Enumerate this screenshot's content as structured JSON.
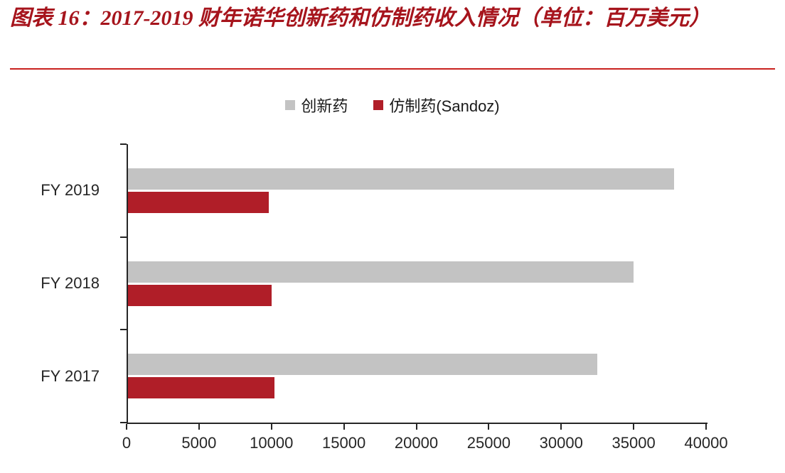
{
  "title": "图表 16：2017-2019 财年诺华创新药和仿制药收入情况（单位：百万美元）",
  "legend": [
    {
      "label": "创新药",
      "color": "#c3c3c3"
    },
    {
      "label": "仿制药(Sandoz)",
      "color": "#b01e28"
    }
  ],
  "colors": {
    "title_red": "#a6141c",
    "rule_red": "#c9211e",
    "bar_gray": "#c3c3c3",
    "bar_red": "#b01e28",
    "axis": "#262626"
  },
  "chart_data": {
    "type": "bar",
    "orientation": "horizontal",
    "title": "图表 16：2017-2019 财年诺华创新药和仿制药收入情况（单位：百万美元）",
    "categories": [
      "FY 2019",
      "FY 2018",
      "FY 2017"
    ],
    "series": [
      {
        "name": "创新药",
        "color": "#c3c3c3",
        "values": [
          37700,
          34900,
          32400
        ]
      },
      {
        "name": "仿制药(Sandoz)",
        "color": "#b01e28",
        "values": [
          9700,
          9900,
          10100
        ]
      }
    ],
    "xlabel": "",
    "ylabel": "",
    "xlim": [
      0,
      40000
    ],
    "xticks": [
      0,
      5000,
      10000,
      15000,
      20000,
      25000,
      30000,
      35000,
      40000
    ],
    "grid": false,
    "legend_position": "top-center"
  }
}
